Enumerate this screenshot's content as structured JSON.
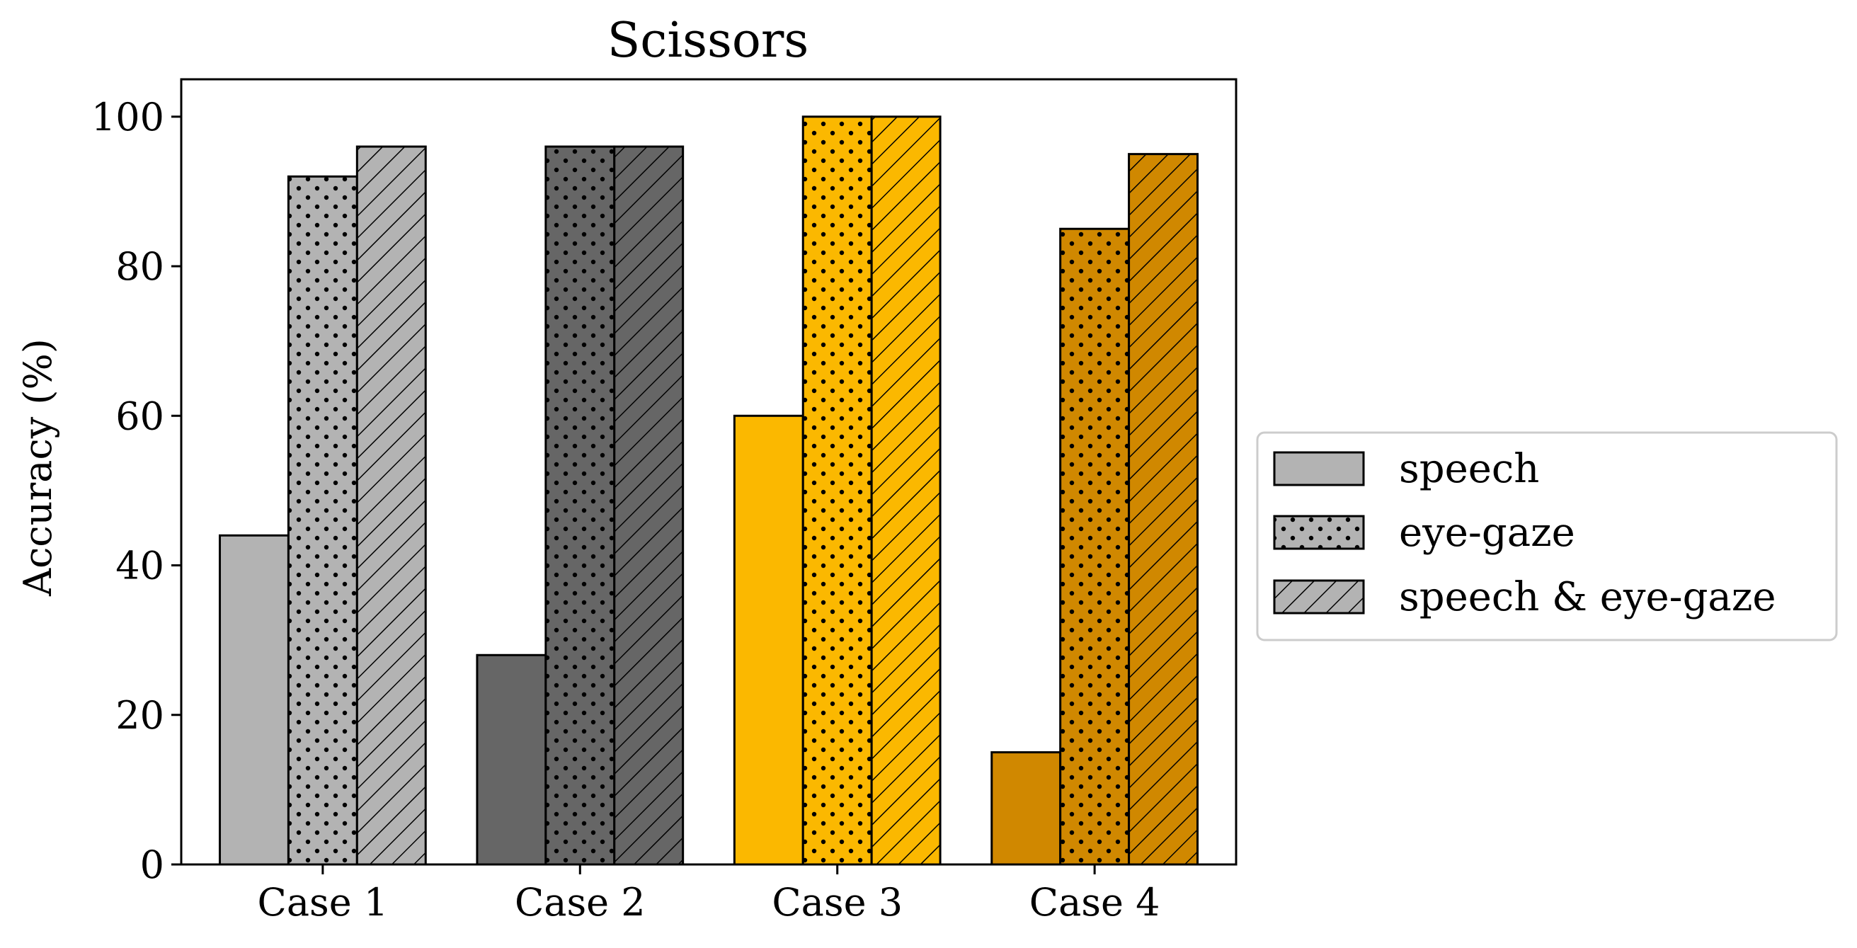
{
  "chart_data": {
    "type": "bar",
    "title": "Scissors",
    "xlabel": "",
    "ylabel": "Accuracy (%)",
    "ylim": [
      0,
      105
    ],
    "yticks": [
      0,
      20,
      40,
      60,
      80,
      100
    ],
    "categories": [
      "Case 1",
      "Case 2",
      "Case 3",
      "Case 4"
    ],
    "category_colors": [
      "#b3b3b3",
      "#666666",
      "#fbb800",
      "#d08800"
    ],
    "series": [
      {
        "name": "speech",
        "pattern": "solid",
        "values": [
          44,
          28,
          60,
          15
        ]
      },
      {
        "name": "eye-gaze",
        "pattern": "dots",
        "values": [
          92,
          96,
          100,
          85
        ]
      },
      {
        "name": "speech & eye-gaze",
        "pattern": "hatch",
        "values": [
          96,
          96,
          100,
          95
        ]
      }
    ],
    "legend": {
      "placement": "right",
      "swatch_color": "#b3b3b3"
    },
    "grid": false
  }
}
